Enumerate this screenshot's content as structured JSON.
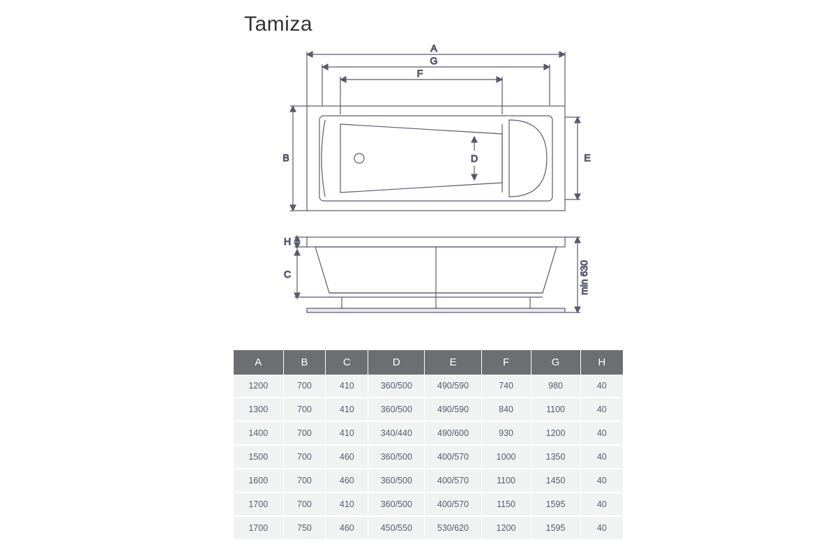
{
  "title": "Tamiza",
  "diagram": {
    "stroke": "#5a5a6e",
    "stroke_width": 1.2,
    "labels": {
      "A": "A",
      "B": "B",
      "C": "C",
      "D": "D",
      "E": "E",
      "F": "F",
      "G": "G",
      "H": "H",
      "min630": "min 630"
    }
  },
  "table": {
    "header_bg": "#6d6e71",
    "header_fg": "#ffffff",
    "row_bg": "#f1f2f2",
    "row_fg": "#5a5a6e",
    "columns": [
      "A",
      "B",
      "C",
      "D",
      "E",
      "F",
      "G",
      "H"
    ],
    "rows": [
      [
        "1200",
        "700",
        "410",
        "360/500",
        "490/590",
        "740",
        "980",
        "40"
      ],
      [
        "1300",
        "700",
        "410",
        "360/500",
        "490/590",
        "840",
        "1100",
        "40"
      ],
      [
        "1400",
        "700",
        "410",
        "340/440",
        "490/600",
        "930",
        "1200",
        "40"
      ],
      [
        "1500",
        "700",
        "460",
        "360/500",
        "400/570",
        "1000",
        "1350",
        "40"
      ],
      [
        "1600",
        "700",
        "460",
        "360/500",
        "400/570",
        "1100",
        "1450",
        "40"
      ],
      [
        "1700",
        "700",
        "410",
        "360/500",
        "400/570",
        "1150",
        "1595",
        "40"
      ],
      [
        "1700",
        "750",
        "460",
        "450/550",
        "530/620",
        "1200",
        "1595",
        "40"
      ]
    ]
  }
}
